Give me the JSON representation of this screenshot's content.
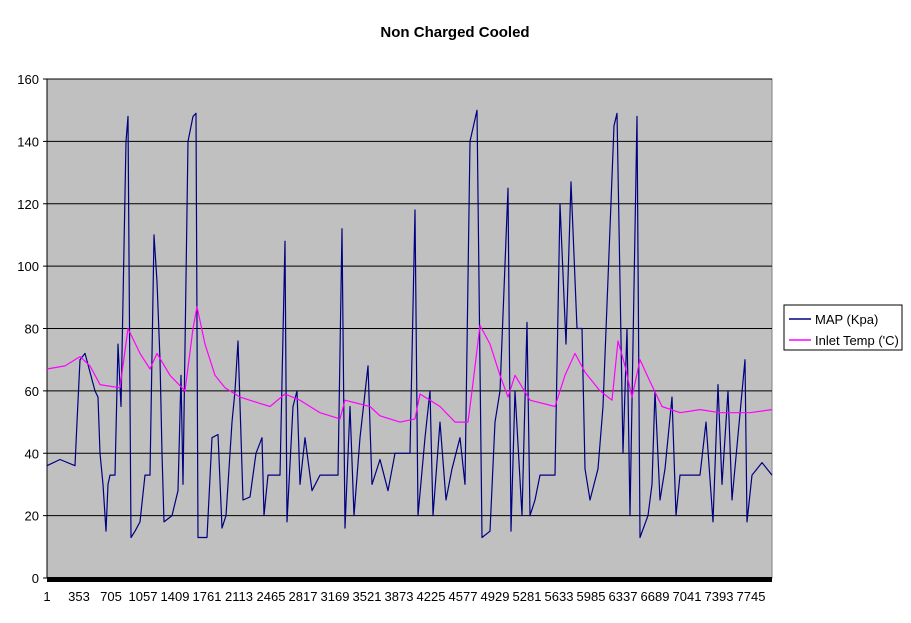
{
  "chart_data": {
    "type": "line",
    "title": "Non Charged Cooled",
    "xlabel": "",
    "ylabel": "",
    "ylim": [
      0,
      160
    ],
    "xlim": [
      1,
      7976
    ],
    "yticks": [
      "0",
      "20",
      "40",
      "60",
      "80",
      "100",
      "120",
      "140",
      "160"
    ],
    "xticks": [
      "1",
      "353",
      "705",
      "1057",
      "1409",
      "1761",
      "2113",
      "2465",
      "2817",
      "3169",
      "3521",
      "3873",
      "4225",
      "4577",
      "4929",
      "5281",
      "5633",
      "5985",
      "6337",
      "6689",
      "7041",
      "7393",
      "7745"
    ],
    "grid": true,
    "legend_position": "right",
    "background": "#c0c0c0",
    "series": [
      {
        "name": "MAP (Kpa)",
        "color": "#000080",
        "points": [
          [
            1,
            36
          ],
          [
            144,
            38
          ],
          [
            309,
            36
          ],
          [
            331,
            50
          ],
          [
            364,
            70
          ],
          [
            419,
            72
          ],
          [
            529,
            60
          ],
          [
            562,
            58
          ],
          [
            584,
            40
          ],
          [
            617,
            30
          ],
          [
            650,
            15
          ],
          [
            672,
            30
          ],
          [
            694,
            33
          ],
          [
            749,
            33
          ],
          [
            782,
            75
          ],
          [
            815,
            55
          ],
          [
            870,
            140
          ],
          [
            892,
            148
          ],
          [
            925,
            13
          ],
          [
            969,
            15
          ],
          [
            1024,
            18
          ],
          [
            1079,
            33
          ],
          [
            1134,
            33
          ],
          [
            1178,
            110
          ],
          [
            1211,
            95
          ],
          [
            1244,
            70
          ],
          [
            1266,
            40
          ],
          [
            1288,
            18
          ],
          [
            1376,
            20
          ],
          [
            1442,
            28
          ],
          [
            1475,
            65
          ],
          [
            1497,
            30
          ],
          [
            1552,
            140
          ],
          [
            1607,
            148
          ],
          [
            1640,
            149
          ],
          [
            1662,
            13
          ],
          [
            1761,
            13
          ],
          [
            1816,
            45
          ],
          [
            1882,
            46
          ],
          [
            1926,
            16
          ],
          [
            1970,
            20
          ],
          [
            2036,
            50
          ],
          [
            2069,
            60
          ],
          [
            2102,
            76
          ],
          [
            2157,
            25
          ],
          [
            2234,
            26
          ],
          [
            2300,
            40
          ],
          [
            2366,
            45
          ],
          [
            2388,
            20
          ],
          [
            2432,
            33
          ],
          [
            2564,
            33
          ],
          [
            2619,
            108
          ],
          [
            2641,
            18
          ],
          [
            2707,
            55
          ],
          [
            2751,
            60
          ],
          [
            2784,
            30
          ],
          [
            2839,
            45
          ],
          [
            2916,
            28
          ],
          [
            3004,
            33
          ],
          [
            3202,
            33
          ],
          [
            3246,
            112
          ],
          [
            3279,
            16
          ],
          [
            3334,
            55
          ],
          [
            3378,
            20
          ],
          [
            3444,
            45
          ],
          [
            3532,
            68
          ],
          [
            3576,
            30
          ],
          [
            3664,
            38
          ],
          [
            3752,
            28
          ],
          [
            3829,
            40
          ],
          [
            3994,
            40
          ],
          [
            4049,
            118
          ],
          [
            4082,
            20
          ],
          [
            4159,
            45
          ],
          [
            4214,
            60
          ],
          [
            4247,
            20
          ],
          [
            4324,
            50
          ],
          [
            4390,
            25
          ],
          [
            4456,
            35
          ],
          [
            4544,
            45
          ],
          [
            4599,
            30
          ],
          [
            4654,
            140
          ],
          [
            4731,
            150
          ],
          [
            4786,
            13
          ],
          [
            4874,
            15
          ],
          [
            4929,
            50
          ],
          [
            4984,
            60
          ],
          [
            5072,
            125
          ],
          [
            5105,
            15
          ],
          [
            5149,
            60
          ],
          [
            5226,
            20
          ],
          [
            5281,
            82
          ],
          [
            5314,
            20
          ],
          [
            5369,
            25
          ],
          [
            5424,
            33
          ],
          [
            5589,
            33
          ],
          [
            5644,
            120
          ],
          [
            5710,
            75
          ],
          [
            5765,
            127
          ],
          [
            5831,
            80
          ],
          [
            5886,
            80
          ],
          [
            5919,
            35
          ],
          [
            5974,
            25
          ],
          [
            6062,
            35
          ],
          [
            6117,
            55
          ],
          [
            6238,
            145
          ],
          [
            6271,
            149
          ],
          [
            6337,
            40
          ],
          [
            6381,
            80
          ],
          [
            6414,
            20
          ],
          [
            6491,
            148
          ],
          [
            6524,
            13
          ],
          [
            6612,
            20
          ],
          [
            6656,
            30
          ],
          [
            6689,
            60
          ],
          [
            6744,
            25
          ],
          [
            6799,
            35
          ],
          [
            6876,
            58
          ],
          [
            6920,
            20
          ],
          [
            6964,
            33
          ],
          [
            7184,
            33
          ],
          [
            7250,
            50
          ],
          [
            7327,
            18
          ],
          [
            7382,
            62
          ],
          [
            7426,
            30
          ],
          [
            7492,
            60
          ],
          [
            7536,
            25
          ],
          [
            7679,
            70
          ],
          [
            7701,
            18
          ],
          [
            7756,
            33
          ],
          [
            7866,
            37
          ],
          [
            7976,
            33
          ]
        ]
      },
      {
        "name": "Inlet Temp ('C)",
        "color": "#ff00ff",
        "points": [
          [
            1,
            67
          ],
          [
            199,
            68
          ],
          [
            364,
            71
          ],
          [
            474,
            68
          ],
          [
            584,
            62
          ],
          [
            804,
            61
          ],
          [
            892,
            80
          ],
          [
            1024,
            72
          ],
          [
            1134,
            67
          ],
          [
            1211,
            72
          ],
          [
            1354,
            65
          ],
          [
            1519,
            60
          ],
          [
            1607,
            80
          ],
          [
            1651,
            87
          ],
          [
            1739,
            75
          ],
          [
            1849,
            65
          ],
          [
            1959,
            61
          ],
          [
            2124,
            58
          ],
          [
            2344,
            56
          ],
          [
            2454,
            55
          ],
          [
            2619,
            59
          ],
          [
            2784,
            57
          ],
          [
            3004,
            53
          ],
          [
            3224,
            51
          ],
          [
            3279,
            57
          ],
          [
            3554,
            55
          ],
          [
            3664,
            52
          ],
          [
            3884,
            50
          ],
          [
            4049,
            51
          ],
          [
            4104,
            59
          ],
          [
            4324,
            55
          ],
          [
            4489,
            50
          ],
          [
            4632,
            50
          ],
          [
            4676,
            60
          ],
          [
            4764,
            81
          ],
          [
            4874,
            75
          ],
          [
            4984,
            65
          ],
          [
            5072,
            58
          ],
          [
            5149,
            65
          ],
          [
            5314,
            57
          ],
          [
            5589,
            55
          ],
          [
            5699,
            65
          ],
          [
            5809,
            72
          ],
          [
            5919,
            66
          ],
          [
            6084,
            60
          ],
          [
            6216,
            57
          ],
          [
            6282,
            76
          ],
          [
            6359,
            68
          ],
          [
            6436,
            58
          ],
          [
            6524,
            70
          ],
          [
            6634,
            63
          ],
          [
            6766,
            55
          ],
          [
            6964,
            53
          ],
          [
            7184,
            54
          ],
          [
            7404,
            53
          ],
          [
            7734,
            53
          ],
          [
            7976,
            54
          ]
        ]
      }
    ]
  }
}
